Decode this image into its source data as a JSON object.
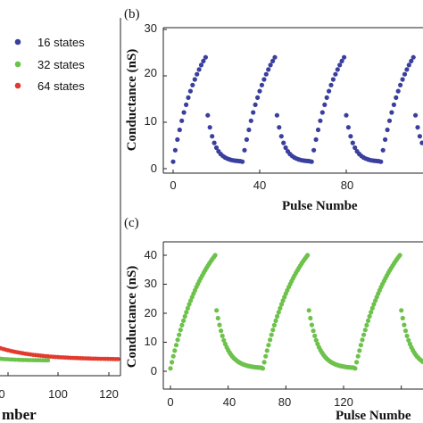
{
  "colors": {
    "blue": "#3a3f9e",
    "green": "#6cc24a",
    "red": "#e23a2e"
  },
  "legend": {
    "entries": [
      {
        "label": "16 states",
        "color": "#3a3f9e"
      },
      {
        "label": "32 states",
        "color": "#6cc24a"
      },
      {
        "label": "64 states",
        "color": "#e23a2e"
      }
    ]
  },
  "panel_a": {
    "xlabel": "mber",
    "xticks": [
      "0",
      "100",
      "120"
    ]
  },
  "panel_b": {
    "panel_label": "(b)",
    "ylabel": "Conductance (nS)",
    "xlabel": "Pulse Numbe",
    "yticks": [
      "0",
      "10",
      "20",
      "30"
    ],
    "xticks": [
      "0",
      "40",
      "80"
    ]
  },
  "panel_c": {
    "panel_label": "(c)",
    "ylabel": "Conductance (nS)",
    "xlabel": "Pulse Numbe",
    "yticks": [
      "0",
      "10",
      "20",
      "30",
      "40"
    ],
    "xticks": [
      "0",
      "40",
      "80",
      "120"
    ]
  },
  "chart_data": [
    {
      "type": "scatter",
      "panel": "a",
      "series": [
        {
          "name": "16 states",
          "color": "#3a3f9e"
        },
        {
          "name": "32 states",
          "color": "#6cc24a",
          "x_range": [
            0,
            96
          ]
        },
        {
          "name": "64 states",
          "color": "#e23a2e",
          "x_range": [
            0,
            128
          ]
        }
      ],
      "xlim": [
        0,
        130
      ]
    },
    {
      "type": "scatter",
      "panel": "b",
      "cycle_length": 32,
      "cycles": 5,
      "potentiation": {
        "start": 1.5,
        "end": 24
      },
      "depression": {
        "start": 11.5,
        "end": 1.5
      },
      "xlim": [
        -5,
        155
      ],
      "ylim": [
        0,
        30
      ],
      "xlabel": "Pulse Numbe",
      "ylabel": "Conductance (nS)"
    },
    {
      "type": "scatter",
      "panel": "c",
      "cycle_length": 64,
      "cycles": 3,
      "potentiation": {
        "start": 1,
        "end": 40
      },
      "depression": {
        "start": 21,
        "end": 1
      },
      "xlim": [
        -5,
        200
      ],
      "ylim": [
        -3,
        45
      ],
      "xlabel": "Pulse Numbe",
      "ylabel": "Conductance (nS)"
    }
  ]
}
